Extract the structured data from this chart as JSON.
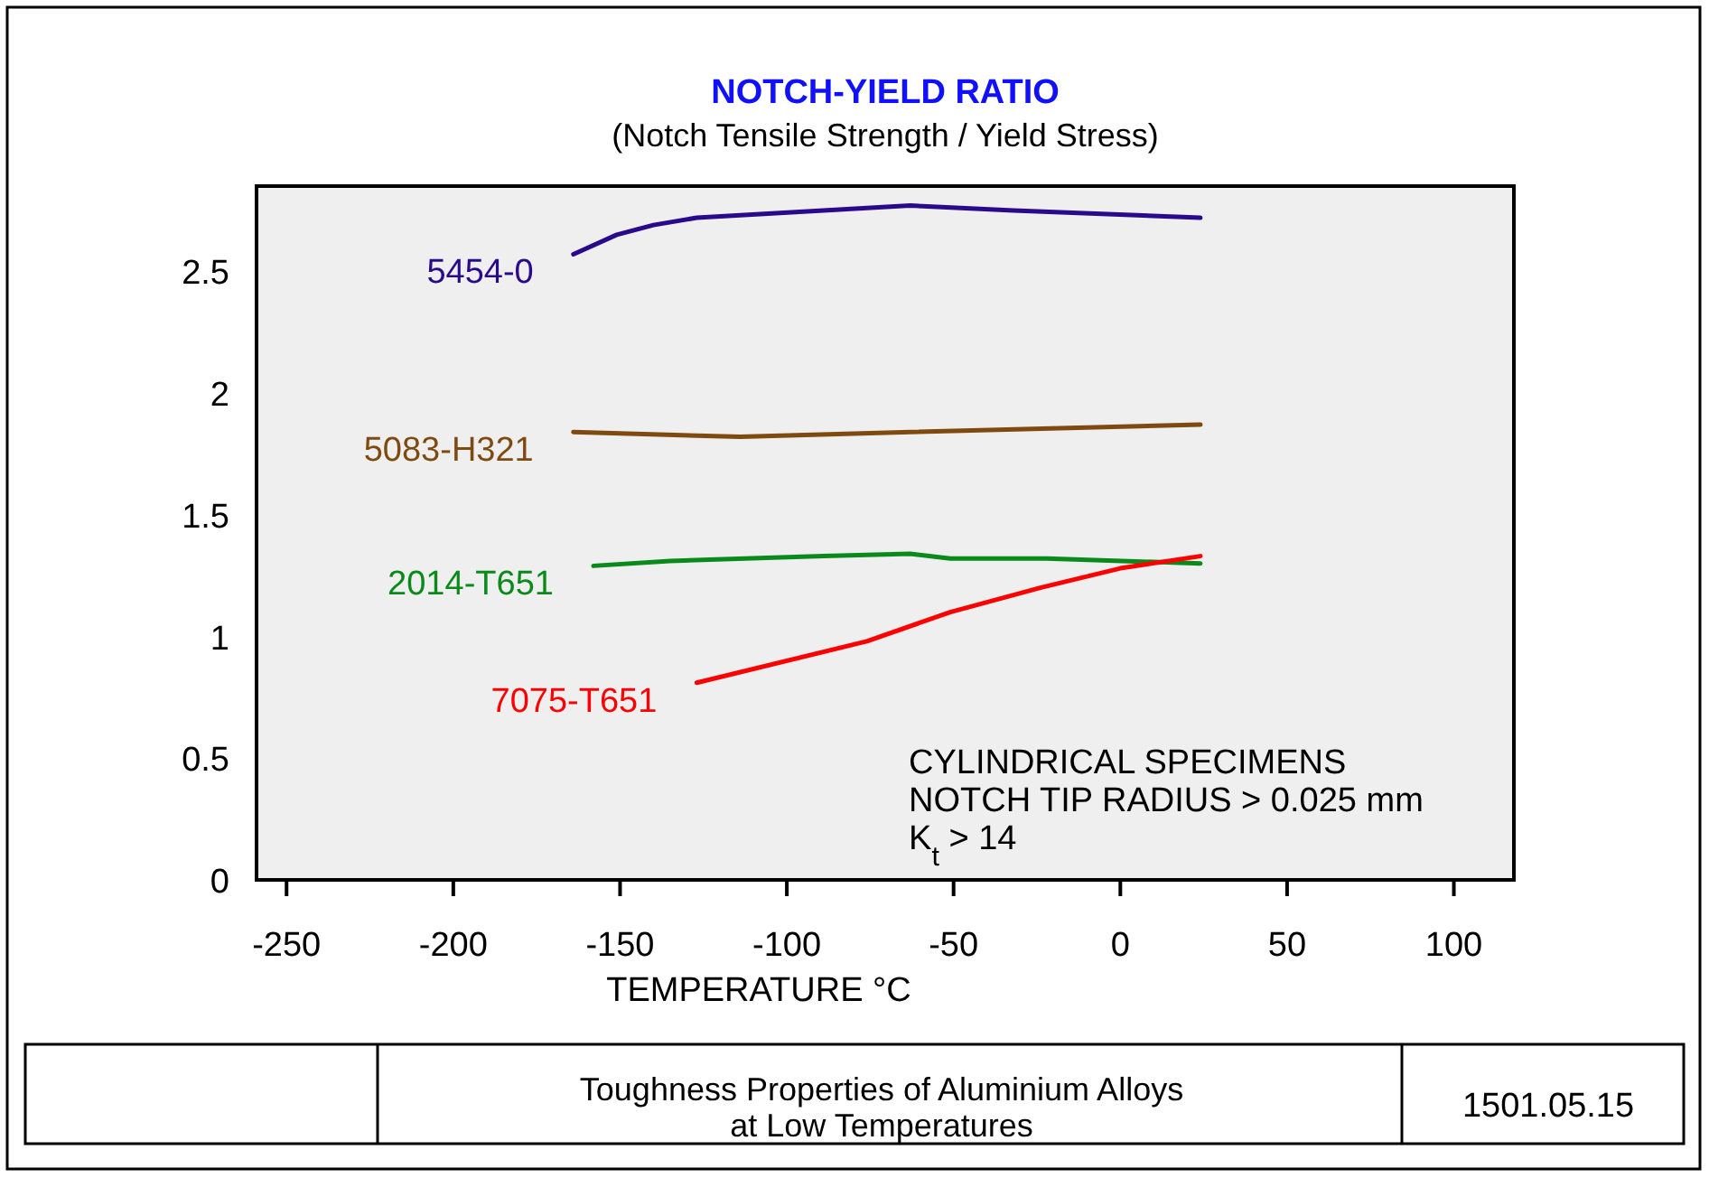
{
  "chart_data": {
    "type": "line",
    "title": "NOTCH-YIELD RATIO",
    "subtitle": "(Notch Tensile Strength / Yield Stress)",
    "xlabel": "TEMPERATURE  °C",
    "xlim": [
      -259,
      118
    ],
    "xticks": [
      -250,
      -200,
      -150,
      -100,
      -50,
      0,
      50,
      100
    ],
    "ylim": [
      0,
      2.85
    ],
    "yticks": [
      0,
      0.5,
      1,
      1.5,
      2,
      2.5
    ],
    "line_style": "solid",
    "series": [
      {
        "name": "5454-0",
        "color": "#2a0a8c",
        "x": [
          -164,
          -151,
          -140,
          -127,
          -63,
          -32,
          24
        ],
        "values": [
          2.57,
          2.65,
          2.69,
          2.72,
          2.77,
          2.75,
          2.72
        ]
      },
      {
        "name": "5083-H321",
        "color": "#7f4a10",
        "x": [
          -164,
          -114,
          -63,
          24
        ],
        "values": [
          1.84,
          1.82,
          1.84,
          1.87
        ]
      },
      {
        "name": "2014-T651",
        "color": "#0a8a1a",
        "x": [
          -158,
          -135,
          -89,
          -63,
          -51,
          -22,
          24
        ],
        "values": [
          1.29,
          1.31,
          1.33,
          1.34,
          1.32,
          1.32,
          1.3
        ]
      },
      {
        "name": "7075-T651",
        "color": "#ff0000",
        "x": [
          -127,
          -76,
          -51,
          -24,
          0,
          24
        ],
        "values": [
          0.81,
          0.98,
          1.1,
          1.2,
          1.28,
          1.33
        ]
      }
    ],
    "annotations": [
      "CYLINDRICAL SPECIMENS",
      "NOTCH TIP RADIUS > 0.025 mm",
      "K$_{t}$ > 14",
      "Toughness Properties of Aluminium Alloys",
      "at Low Temperatures",
      "1501.05.15"
    ]
  }
}
